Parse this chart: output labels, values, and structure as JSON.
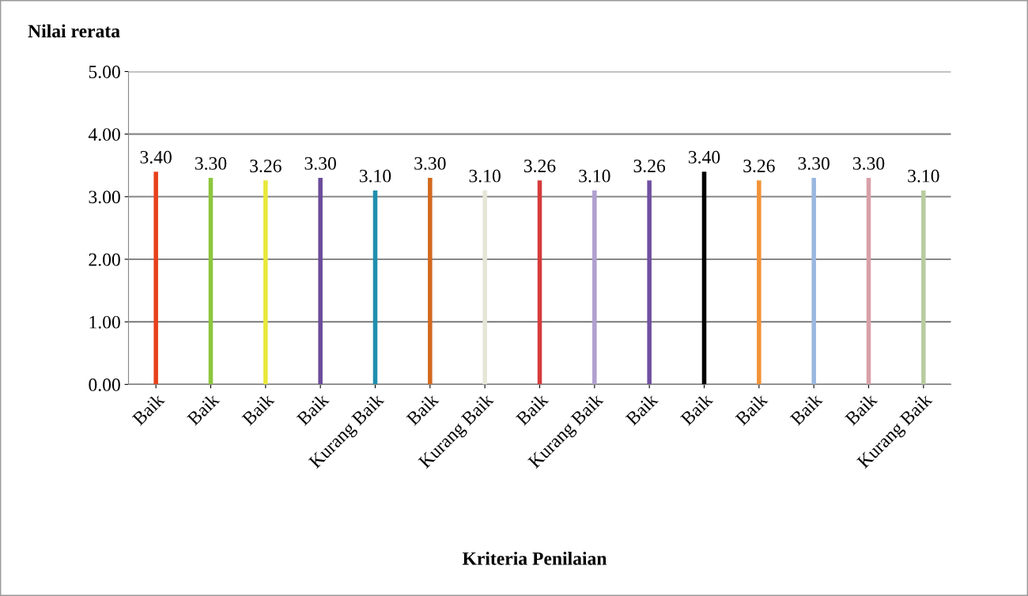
{
  "chart_data": {
    "type": "bar",
    "title": "Nilai rerata",
    "xlabel": "Kriteria Penilaian",
    "categories": [
      "Baik",
      "Baik",
      "Baik",
      "Baik",
      "Kurang Baik",
      "Baik",
      "Kurang Baik",
      "Baik",
      "Kurang Baik",
      "Baik",
      "Baik",
      "Baik",
      "Baik",
      "Baik",
      "Kurang Baik"
    ],
    "values": [
      3.4,
      3.3,
      3.26,
      3.3,
      3.1,
      3.3,
      3.1,
      3.26,
      3.1,
      3.26,
      3.4,
      3.26,
      3.3,
      3.3,
      3.1
    ],
    "colors": [
      "#e8401c",
      "#8dc63f",
      "#e8e83a",
      "#6b4c9a",
      "#1f8fad",
      "#d2691e",
      "#e6e6d6",
      "#d63b3b",
      "#b0a0d0",
      "#7050a0",
      "#000000",
      "#f39237",
      "#9bb7e0",
      "#d9a0a8",
      "#b8cca0"
    ],
    "ylim": [
      0,
      5
    ],
    "yticks": [
      {
        "value": 0,
        "label": "0.00"
      },
      {
        "value": 1,
        "label": "1.00"
      },
      {
        "value": 2,
        "label": "2.00"
      },
      {
        "value": 3,
        "label": "3.00"
      },
      {
        "value": 4,
        "label": "4.00"
      },
      {
        "value": 5,
        "label": "5.00"
      }
    ],
    "value_labels": [
      "3.40",
      "3.30",
      "3.26",
      "3.30",
      "3.10",
      "3.30",
      "3.10",
      "3.26",
      "3.10",
      "3.26",
      "3.40",
      "3.26",
      "3.30",
      "3.30",
      "3.10"
    ],
    "grid": "y",
    "legend": false
  }
}
